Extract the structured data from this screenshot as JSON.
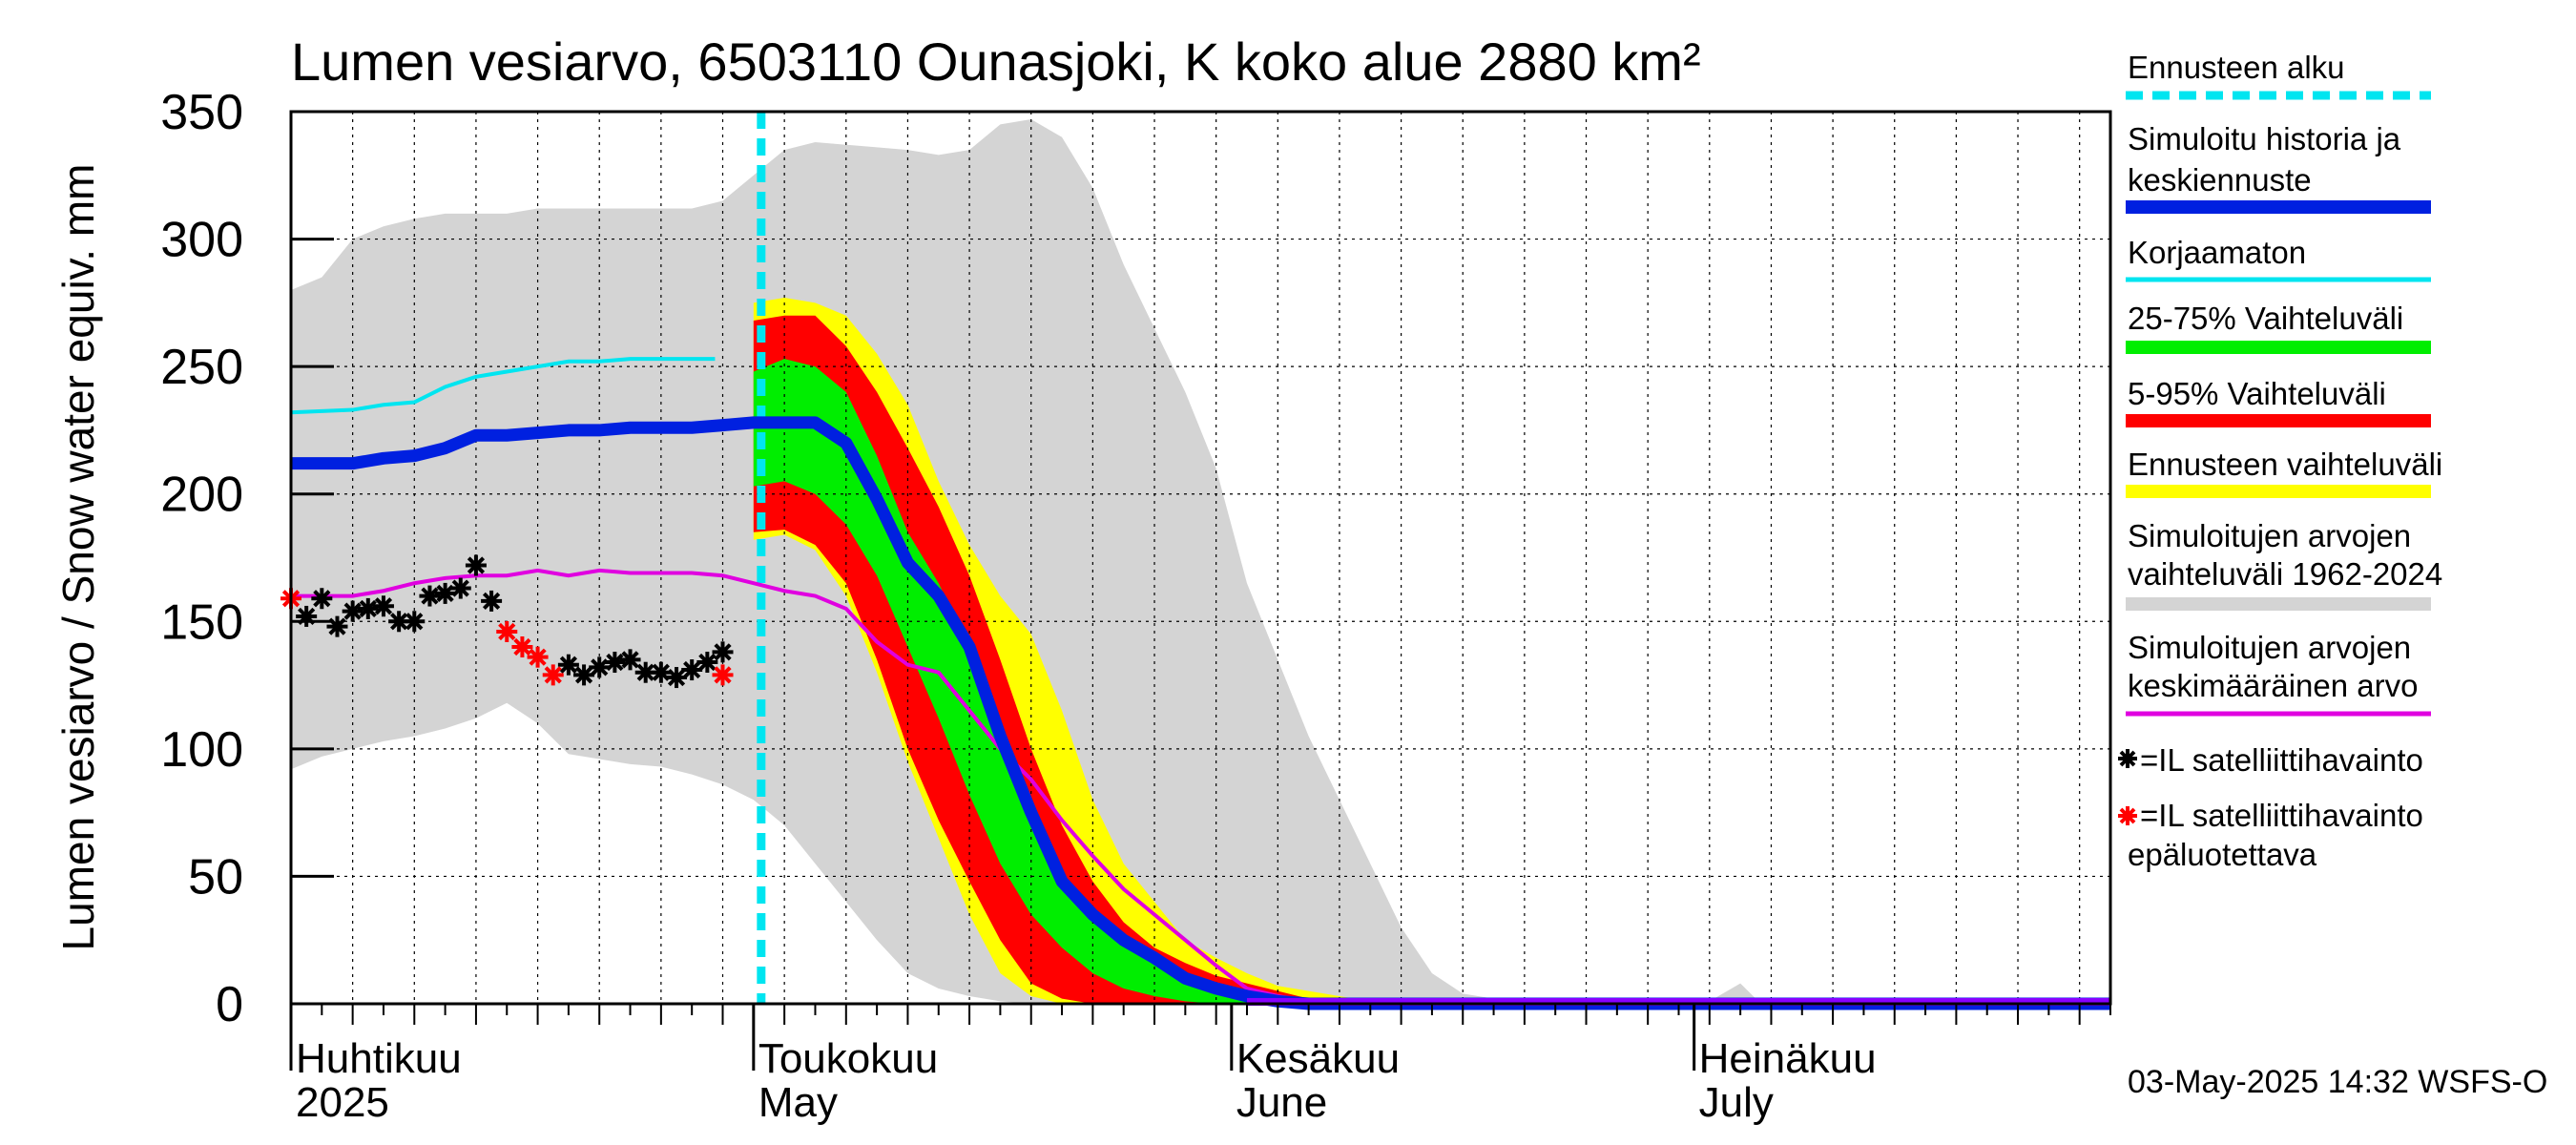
{
  "chart_data": {
    "type": "area",
    "title": "Lumen vesiarvo, 6503110 Ounasjoki, K koko alue 2880 km²",
    "ylabel": "Lumen vesiarvo / Snow water equiv.    mm",
    "ylim": [
      0,
      350
    ],
    "yticks": [
      0,
      50,
      100,
      150,
      200,
      250,
      300,
      350
    ],
    "xlim_day": [
      0,
      118
    ],
    "month_labels": [
      {
        "fi": "Huhtikuu",
        "en": "2025",
        "day": 0
      },
      {
        "fi": "Toukokuu",
        "en": "May",
        "day": 30
      },
      {
        "fi": "Kesäkuu",
        "en": "June",
        "day": 61
      },
      {
        "fi": "Heinäkuu",
        "en": "July",
        "day": 91
      }
    ],
    "forecast_start_day": 30,
    "series": {
      "range_1962_2024": {
        "upper": [
          [
            0,
            280
          ],
          [
            2,
            285
          ],
          [
            4,
            300
          ],
          [
            6,
            305
          ],
          [
            8,
            308
          ],
          [
            10,
            310
          ],
          [
            12,
            310
          ],
          [
            14,
            310
          ],
          [
            16,
            312
          ],
          [
            18,
            312
          ],
          [
            20,
            312
          ],
          [
            22,
            312
          ],
          [
            24,
            312
          ],
          [
            26,
            312
          ],
          [
            28,
            315
          ],
          [
            30,
            325
          ],
          [
            32,
            335
          ],
          [
            34,
            338
          ],
          [
            36,
            337
          ],
          [
            38,
            336
          ],
          [
            40,
            335
          ],
          [
            42,
            333
          ],
          [
            44,
            335
          ],
          [
            46,
            345
          ],
          [
            48,
            347
          ],
          [
            50,
            340
          ],
          [
            52,
            320
          ],
          [
            54,
            290
          ],
          [
            56,
            265
          ],
          [
            58,
            240
          ],
          [
            60,
            210
          ],
          [
            62,
            165
          ],
          [
            64,
            135
          ],
          [
            66,
            105
          ],
          [
            68,
            80
          ],
          [
            70,
            55
          ],
          [
            72,
            30
          ],
          [
            74,
            12
          ],
          [
            76,
            4
          ],
          [
            78,
            2
          ],
          [
            80,
            1
          ],
          [
            86,
            1
          ],
          [
            92,
            1
          ],
          [
            94,
            8
          ],
          [
            95,
            2
          ],
          [
            96,
            1
          ],
          [
            118,
            1
          ]
        ],
        "lower": [
          [
            0,
            92
          ],
          [
            2,
            97
          ],
          [
            4,
            100
          ],
          [
            6,
            103
          ],
          [
            8,
            105
          ],
          [
            10,
            108
          ],
          [
            12,
            112
          ],
          [
            14,
            118
          ],
          [
            16,
            110
          ],
          [
            18,
            98
          ],
          [
            20,
            96
          ],
          [
            22,
            94
          ],
          [
            24,
            93
          ],
          [
            26,
            90
          ],
          [
            28,
            86
          ],
          [
            30,
            80
          ],
          [
            32,
            70
          ],
          [
            34,
            55
          ],
          [
            36,
            40
          ],
          [
            38,
            25
          ],
          [
            40,
            12
          ],
          [
            42,
            6
          ],
          [
            44,
            3
          ],
          [
            46,
            1
          ],
          [
            48,
            0
          ],
          [
            118,
            0
          ]
        ]
      },
      "forecast_range": {
        "upper": [
          [
            30,
            275
          ],
          [
            32,
            277
          ],
          [
            34,
            275
          ],
          [
            36,
            270
          ],
          [
            38,
            255
          ],
          [
            40,
            235
          ],
          [
            42,
            205
          ],
          [
            44,
            180
          ],
          [
            46,
            160
          ],
          [
            48,
            145
          ],
          [
            50,
            115
          ],
          [
            52,
            80
          ],
          [
            54,
            55
          ],
          [
            56,
            40
          ],
          [
            58,
            25
          ],
          [
            60,
            18
          ],
          [
            62,
            12
          ],
          [
            64,
            7
          ],
          [
            66,
            5
          ],
          [
            68,
            3
          ],
          [
            70,
            1
          ],
          [
            72,
            0
          ]
        ],
        "lower": [
          [
            30,
            182
          ],
          [
            32,
            184
          ],
          [
            34,
            178
          ],
          [
            36,
            160
          ],
          [
            38,
            130
          ],
          [
            40,
            95
          ],
          [
            42,
            65
          ],
          [
            44,
            35
          ],
          [
            46,
            12
          ],
          [
            48,
            3
          ],
          [
            50,
            0
          ]
        ]
      },
      "p5_95": {
        "upper": [
          [
            30,
            268
          ],
          [
            32,
            270
          ],
          [
            34,
            270
          ],
          [
            36,
            258
          ],
          [
            38,
            240
          ],
          [
            40,
            218
          ],
          [
            42,
            195
          ],
          [
            44,
            168
          ],
          [
            46,
            135
          ],
          [
            48,
            100
          ],
          [
            50,
            70
          ],
          [
            52,
            48
          ],
          [
            54,
            32
          ],
          [
            56,
            22
          ],
          [
            58,
            16
          ],
          [
            60,
            11
          ],
          [
            62,
            8
          ],
          [
            64,
            5
          ],
          [
            66,
            2
          ],
          [
            68,
            1
          ],
          [
            70,
            0
          ]
        ],
        "lower": [
          [
            30,
            185
          ],
          [
            32,
            186
          ],
          [
            34,
            180
          ],
          [
            36,
            165
          ],
          [
            38,
            135
          ],
          [
            40,
            100
          ],
          [
            42,
            72
          ],
          [
            44,
            48
          ],
          [
            46,
            25
          ],
          [
            48,
            8
          ],
          [
            50,
            2
          ],
          [
            52,
            0
          ]
        ]
      },
      "p25_75": {
        "upper": [
          [
            30,
            248
          ],
          [
            32,
            253
          ],
          [
            34,
            250
          ],
          [
            36,
            240
          ],
          [
            38,
            215
          ],
          [
            40,
            185
          ],
          [
            42,
            165
          ],
          [
            44,
            140
          ],
          [
            46,
            110
          ],
          [
            48,
            70
          ],
          [
            50,
            48
          ],
          [
            52,
            35
          ],
          [
            54,
            25
          ],
          [
            56,
            18
          ],
          [
            58,
            12
          ],
          [
            60,
            7
          ],
          [
            62,
            4
          ],
          [
            64,
            2
          ],
          [
            66,
            1
          ],
          [
            68,
            0
          ]
        ],
        "lower": [
          [
            30,
            203
          ],
          [
            32,
            205
          ],
          [
            34,
            200
          ],
          [
            36,
            188
          ],
          [
            38,
            168
          ],
          [
            40,
            140
          ],
          [
            42,
            112
          ],
          [
            44,
            82
          ],
          [
            46,
            55
          ],
          [
            48,
            35
          ],
          [
            50,
            22
          ],
          [
            52,
            12
          ],
          [
            54,
            6
          ],
          [
            56,
            3
          ],
          [
            58,
            1
          ],
          [
            60,
            0
          ]
        ]
      },
      "mean_1962_2024": [
        [
          0,
          160
        ],
        [
          2,
          160
        ],
        [
          4,
          160
        ],
        [
          6,
          162
        ],
        [
          8,
          165
        ],
        [
          10,
          167
        ],
        [
          12,
          168
        ],
        [
          14,
          168
        ],
        [
          16,
          170
        ],
        [
          18,
          168
        ],
        [
          20,
          170
        ],
        [
          22,
          169
        ],
        [
          24,
          169
        ],
        [
          26,
          169
        ],
        [
          28,
          168
        ],
        [
          30,
          165
        ],
        [
          32,
          162
        ],
        [
          34,
          160
        ],
        [
          36,
          155
        ],
        [
          38,
          142
        ],
        [
          40,
          133
        ],
        [
          42,
          130
        ],
        [
          44,
          115
        ],
        [
          46,
          100
        ],
        [
          48,
          88
        ],
        [
          50,
          72
        ],
        [
          52,
          58
        ],
        [
          54,
          45
        ],
        [
          56,
          35
        ],
        [
          58,
          25
        ],
        [
          60,
          15
        ],
        [
          62,
          6
        ],
        [
          64,
          3
        ],
        [
          66,
          1
        ],
        [
          70,
          0
        ],
        [
          118,
          0
        ]
      ],
      "uncorrected": [
        [
          0,
          232
        ],
        [
          4,
          233
        ],
        [
          6,
          235
        ],
        [
          8,
          236
        ],
        [
          10,
          242
        ],
        [
          12,
          246
        ],
        [
          14,
          248
        ],
        [
          16,
          250
        ],
        [
          18,
          252
        ],
        [
          20,
          252
        ],
        [
          22,
          253
        ],
        [
          24,
          253
        ],
        [
          26,
          253
        ],
        [
          27.5,
          253
        ]
      ],
      "simulated_history_and_median": [
        [
          0,
          212
        ],
        [
          2,
          212
        ],
        [
          4,
          212
        ],
        [
          6,
          214
        ],
        [
          8,
          215
        ],
        [
          10,
          218
        ],
        [
          12,
          223
        ],
        [
          14,
          223
        ],
        [
          16,
          224
        ],
        [
          18,
          225
        ],
        [
          20,
          225
        ],
        [
          22,
          226
        ],
        [
          24,
          226
        ],
        [
          26,
          226
        ],
        [
          28,
          227
        ],
        [
          30,
          228
        ],
        [
          32,
          228
        ],
        [
          34,
          228
        ],
        [
          36,
          220
        ],
        [
          38,
          198
        ],
        [
          40,
          173
        ],
        [
          42,
          160
        ],
        [
          44,
          140
        ],
        [
          46,
          105
        ],
        [
          48,
          75
        ],
        [
          50,
          48
        ],
        [
          52,
          35
        ],
        [
          54,
          25
        ],
        [
          56,
          18
        ],
        [
          58,
          10
        ],
        [
          60,
          6
        ],
        [
          62,
          3
        ],
        [
          64,
          1
        ],
        [
          66,
          0
        ],
        [
          118,
          0
        ]
      ]
    },
    "observations_satellite": [
      [
        1,
        152
      ],
      [
        2,
        159
      ],
      [
        3,
        148
      ],
      [
        4,
        154
      ],
      [
        5,
        155
      ],
      [
        6,
        156
      ],
      [
        7,
        150
      ],
      [
        8,
        150
      ],
      [
        9,
        160
      ],
      [
        10,
        161
      ],
      [
        11,
        163
      ],
      [
        12,
        172
      ],
      [
        13,
        158
      ],
      [
        18,
        133
      ],
      [
        19,
        129
      ],
      [
        20,
        132
      ],
      [
        21,
        134
      ],
      [
        22,
        135
      ],
      [
        23,
        130
      ],
      [
        24,
        130
      ],
      [
        25,
        128
      ],
      [
        26,
        131
      ],
      [
        27,
        134
      ],
      [
        28,
        138
      ]
    ],
    "observations_satellite_unreliable": [
      [
        0,
        159
      ],
      [
        14,
        146
      ],
      [
        15,
        140
      ],
      [
        16,
        136
      ],
      [
        17,
        129
      ],
      [
        28,
        129
      ]
    ],
    "colors": {
      "range_1962_2024": "#d4d4d4",
      "forecast_range": "#ffff00",
      "p5_95": "#ff0000",
      "p25_75": "#00ee00",
      "median": "#0020e0",
      "uncorrected": "#00e5f0",
      "mean": "#e000e0",
      "forecast_start": "#00e5f0",
      "obs": "#000000",
      "obs_unreliable": "#ff0000",
      "tail_line": "#8800ff"
    }
  },
  "legend": {
    "forecast_start": "Ennusteen alku",
    "sim_history_1": "Simuloitu historia ja",
    "sim_history_2": "keskiennuste",
    "uncorrected": "Korjaamaton",
    "p25_75": "25-75% Vaihteluväli",
    "p5_95": "5-95% Vaihteluväli",
    "forecast_range": "Ennusteen vaihteluväli",
    "range_1": "Simuloitujen arvojen",
    "range_2": "vaihteluväli 1962-2024",
    "mean_1": "Simuloitujen arvojen",
    "mean_2": "keskimääräinen arvo",
    "obs": "=IL satelliittihavainto",
    "obs_unrel_1": "=IL satelliittihavainto",
    "obs_unrel_2": "epäluotettava"
  },
  "timestamp": "03-May-2025 14:32 WSFS-O"
}
